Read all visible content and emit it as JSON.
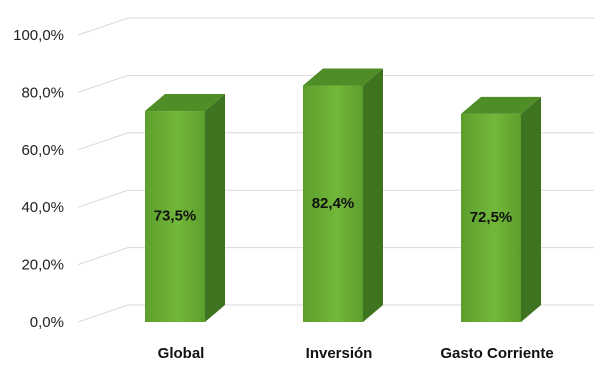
{
  "chart_data": {
    "type": "bar",
    "categories": [
      "Global",
      "Inversión",
      "Gasto Corriente"
    ],
    "values": [
      73.5,
      82.4,
      72.5
    ],
    "data_labels": [
      "73,5%",
      "82,4%",
      "72,5%"
    ],
    "y_ticks": [
      "0,0%",
      "20,0%",
      "40,0%",
      "60,0%",
      "80,0%",
      "100,0%"
    ],
    "ylim": [
      0,
      100
    ],
    "grid": true,
    "three_d": true,
    "colors": {
      "bar_front": "#5c9e2c",
      "bar_front_light": "#72b83a",
      "bar_side": "#3e7320",
      "bar_top": "#4f8d27",
      "grid": "#d9d9d9"
    }
  }
}
